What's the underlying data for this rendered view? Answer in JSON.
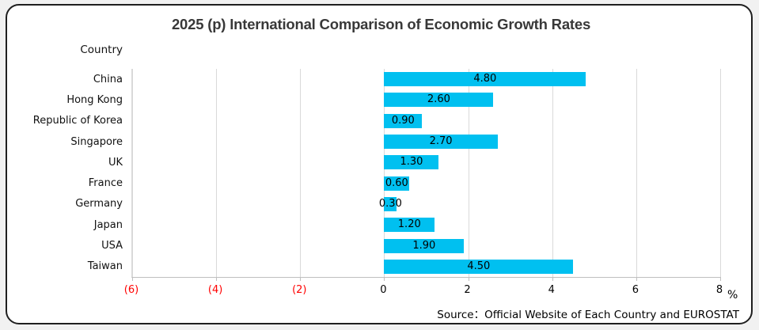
{
  "title": "2025 (p) International Comparison of Economic Growth Rates",
  "y_axis_title": "Country",
  "x_axis_unit": "%",
  "source": "Source：Official Website of Each Country and EUROSTAT",
  "colors": {
    "bar": "#00C0F0",
    "negative_tick_label": "#FF0000",
    "gridline": "#D9D9D9",
    "axis_line": "#BFBFBF",
    "frame_border": "#1F1F1F",
    "outer_background": "#F1F1F1"
  },
  "chart_data": {
    "type": "bar",
    "orientation": "horizontal",
    "title": "2025 (p) International Comparison of Economic Growth Rates",
    "xlabel": "%",
    "ylabel": "Country",
    "categories": [
      "China",
      "Hong Kong",
      "Republic of Korea",
      "Singapore",
      "UK",
      "France",
      "Germany",
      "Japan",
      "USA",
      "Taiwan"
    ],
    "values": [
      4.8,
      2.6,
      0.9,
      2.7,
      1.3,
      0.6,
      0.3,
      1.2,
      1.9,
      4.5
    ],
    "value_labels": [
      "4.80",
      "2.60",
      "0.90",
      "2.70",
      "1.30",
      "0.60",
      "0.30",
      "1.20",
      "1.90",
      "4.50"
    ],
    "xlim": [
      -6,
      8
    ],
    "xticks": [
      -6,
      -4,
      -2,
      0,
      2,
      4,
      6,
      8
    ],
    "xtick_labels": [
      "(6)",
      "(4)",
      "(2)",
      "0",
      "2",
      "4",
      "6",
      "8"
    ],
    "grid": "vertical",
    "legend": "none",
    "bar_color": "#00C0F0"
  }
}
